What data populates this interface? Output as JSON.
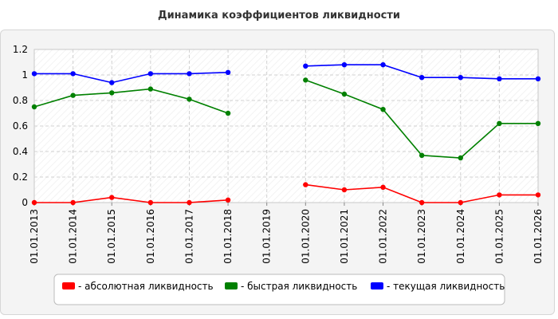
{
  "chart_data": {
    "type": "line",
    "title": "Динамика коэффициентов ликвидности",
    "categories": [
      "01.01.2013",
      "01.01.2014",
      "01.01.2015",
      "01.01.2016",
      "01.01.2017",
      "01.01.2018",
      "01.01.2019",
      "01.01.2020",
      "01.01.2021",
      "01.01.2022",
      "01.01.2023",
      "01.01.2024",
      "01.01.2025",
      "01.01.2026"
    ],
    "y_ticks": [
      "0",
      "0.2",
      "0.4",
      "0.6",
      "0.8",
      "1",
      "1.2"
    ],
    "ylim": [
      0,
      1.2
    ],
    "grid": true,
    "legend_position": "bottom",
    "series": [
      {
        "name": "- абсолютная ликвидность",
        "color": "#ff0000",
        "values": [
          0.0,
          0.0,
          0.04,
          0.0,
          0.0,
          0.02,
          null,
          0.14,
          0.1,
          0.12,
          0.0,
          0.0,
          0.06,
          0.06
        ]
      },
      {
        "name": "- быстрая ликвидность",
        "color": "#008000",
        "values": [
          0.75,
          0.84,
          0.86,
          0.89,
          0.81,
          0.7,
          null,
          0.96,
          0.85,
          0.73,
          0.37,
          0.35,
          0.62,
          0.62
        ]
      },
      {
        "name": "- текущая ликвидность",
        "color": "#0000ff",
        "values": [
          1.01,
          1.01,
          0.94,
          1.01,
          1.01,
          1.02,
          null,
          1.07,
          1.08,
          1.08,
          0.98,
          0.98,
          0.97,
          0.97
        ]
      }
    ]
  }
}
